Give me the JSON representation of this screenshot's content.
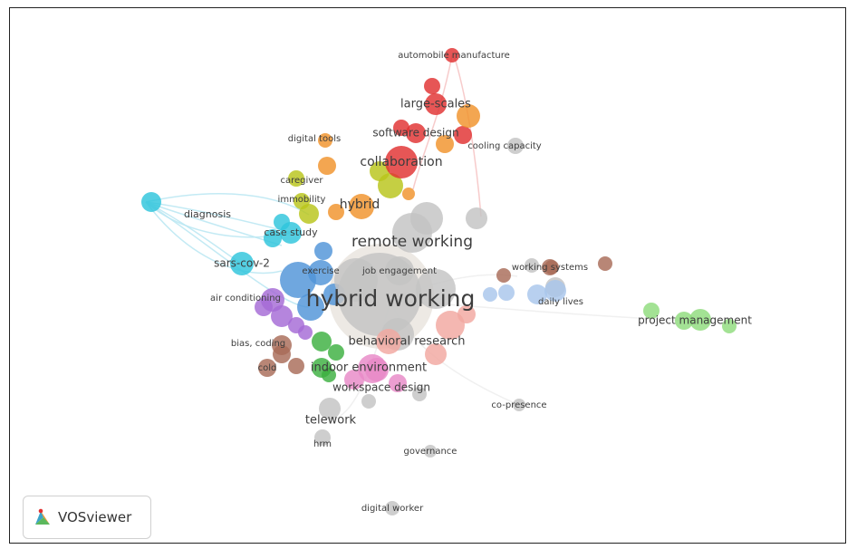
{
  "app": {
    "name": "VOSviewer",
    "logo_icon": "vosviewer-logo-icon"
  },
  "colors": {
    "red": "#e03131",
    "orange": "#f0932b",
    "olive": "#b8c41a",
    "cyan": "#2ec4dc",
    "blue": "#4f94d8",
    "lightblue": "#a8c6ec",
    "purple": "#a56ad6",
    "pink": "#e889c7",
    "green": "#3cb040",
    "lightgreen": "#8fdc7c",
    "brown": "#a86b58",
    "gray": "#c3c3c3",
    "peach": "#f2a7a0",
    "edge": "#b9e6f2"
  },
  "network": {
    "clusters": [
      "red",
      "orange",
      "olive",
      "cyan",
      "blue",
      "lightblue",
      "purple",
      "pink",
      "green",
      "lightgreen",
      "brown",
      "gray",
      "peach"
    ],
    "items": [
      {
        "label": "automobile manufacture",
        "cluster": "red",
        "weight": 1
      },
      {
        "label": "large-scales",
        "cluster": "red",
        "weight": 3
      },
      {
        "label": "software design",
        "cluster": "red",
        "weight": 2
      },
      {
        "label": "collaboration",
        "cluster": "red",
        "weight": 4
      },
      {
        "label": "digital tools",
        "cluster": "orange",
        "weight": 1
      },
      {
        "label": "hybrid",
        "cluster": "orange",
        "weight": 4
      },
      {
        "label": "caregiver",
        "cluster": "olive",
        "weight": 1
      },
      {
        "label": "immobility",
        "cluster": "olive",
        "weight": 1
      },
      {
        "label": "cooling capacity",
        "cluster": "gray",
        "weight": 1
      },
      {
        "label": "diagnosis",
        "cluster": "cyan",
        "weight": 1
      },
      {
        "label": "case study",
        "cluster": "cyan",
        "weight": 2
      },
      {
        "label": "sars-cov-2",
        "cluster": "cyan",
        "weight": 3
      },
      {
        "label": "remote working",
        "cluster": "gray",
        "weight": 6
      },
      {
        "label": "exercise",
        "cluster": "blue",
        "weight": 1
      },
      {
        "label": "job engagement",
        "cluster": "gray",
        "weight": 1
      },
      {
        "label": "working systems",
        "cluster": "brown",
        "weight": 1
      },
      {
        "label": "air conditioning",
        "cluster": "purple",
        "weight": 1
      },
      {
        "label": "hybrid working",
        "cluster": "gray",
        "weight": 10
      },
      {
        "label": "daily lives",
        "cluster": "lightblue",
        "weight": 1
      },
      {
        "label": "project management",
        "cluster": "lightgreen",
        "weight": 2
      },
      {
        "label": "bias, coding",
        "cluster": "brown",
        "weight": 1
      },
      {
        "label": "behavioral research",
        "cluster": "peach",
        "weight": 4
      },
      {
        "label": "cold",
        "cluster": "brown",
        "weight": 1
      },
      {
        "label": "indoor environment",
        "cluster": "green",
        "weight": 3
      },
      {
        "label": "workspace design",
        "cluster": "pink",
        "weight": 2
      },
      {
        "label": "co-presence",
        "cluster": "gray",
        "weight": 1
      },
      {
        "label": "telework",
        "cluster": "gray",
        "weight": 3
      },
      {
        "label": "hrm",
        "cluster": "gray",
        "weight": 1
      },
      {
        "label": "governance",
        "cluster": "gray",
        "weight": 1
      },
      {
        "label": "digital worker",
        "cluster": "gray",
        "weight": 1
      }
    ]
  }
}
